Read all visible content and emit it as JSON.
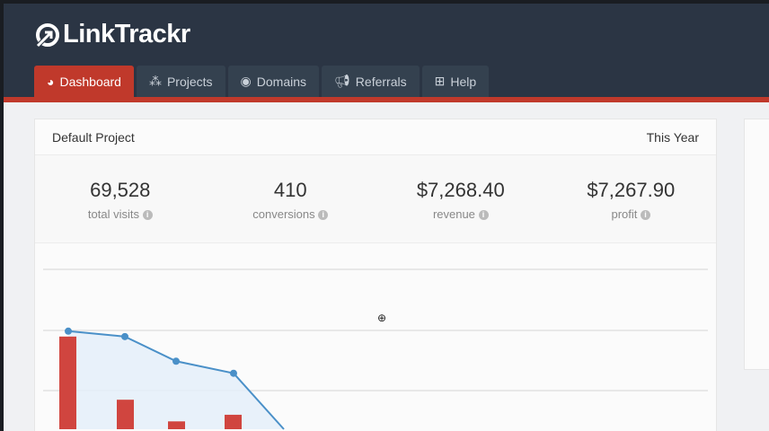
{
  "app": {
    "name": "LinkTrackr"
  },
  "nav": {
    "items": [
      {
        "label": "Dashboard",
        "icon": "dashboard-icon",
        "active": true
      },
      {
        "label": "Projects",
        "icon": "cubes-icon"
      },
      {
        "label": "Domains",
        "icon": "compass-icon"
      },
      {
        "label": "Referrals",
        "icon": "bullhorn-icon"
      },
      {
        "label": "Help",
        "icon": "medkit-icon"
      }
    ]
  },
  "project": {
    "title": "Default Project",
    "period": "This Year"
  },
  "stats": [
    {
      "value": "69,528",
      "label": "total visits"
    },
    {
      "value": "410",
      "label": "conversions"
    },
    {
      "value": "$7,268.40",
      "label": "revenue"
    },
    {
      "value": "$7,267.90",
      "label": "profit"
    }
  ],
  "colors": {
    "header": "#2b3544",
    "accent": "#c0392b",
    "line": "#4a90c8",
    "bar": "#d0453f"
  },
  "chart_data": {
    "type": "bar+area",
    "grid": true,
    "line": {
      "values": [
        1.63,
        1.54,
        1.13,
        0.93,
        0
      ]
    },
    "bars": {
      "values": [
        1.54,
        0.49,
        0.13,
        0.24
      ]
    }
  }
}
